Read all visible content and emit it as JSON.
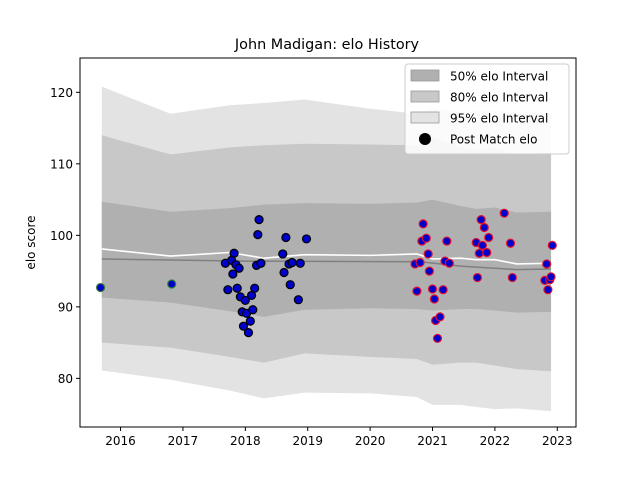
{
  "chart_data": {
    "type": "scatter",
    "title": "John Madigan: elo History",
    "xlabel": "",
    "ylabel": "elo score",
    "xlim": [
      2015.35,
      2023.3
    ],
    "ylim": [
      73.2,
      124.8
    ],
    "x_ticks": [
      2016,
      2017,
      2018,
      2019,
      2020,
      2021,
      2022,
      2023
    ],
    "y_ticks": [
      80,
      90,
      100,
      110,
      120
    ],
    "grid": false,
    "legend_position": "top-right",
    "legend": [
      {
        "label": "50% elo Interval",
        "kind": "patch",
        "color": "#b0b0b0"
      },
      {
        "label": "80% elo Interval",
        "kind": "patch",
        "color": "#c8c8c8"
      },
      {
        "label": "95% elo Interval",
        "kind": "patch",
        "color": "#e3e3e3"
      },
      {
        "label": "Post Match elo",
        "kind": "marker",
        "color": "#000000"
      }
    ],
    "colors": {
      "band_50": "#b0b0b0",
      "band_80": "#c8c8c8",
      "band_95": "#e3e3e3",
      "mean_line": "#ffffff",
      "median_line": "#808080",
      "point_fill": "#0000cc",
      "edge_first": "#2e7d32",
      "edge_mid": "#000000",
      "edge_late": "#e01030"
    },
    "bands": {
      "x": [
        2015.7,
        2016.8,
        2017.75,
        2018.3,
        2018.95,
        2020.0,
        2020.75,
        2021.0,
        2021.45,
        2021.7,
        2022.0,
        2022.35,
        2022.9
      ],
      "p95_upper": [
        120.8,
        117.0,
        118.2,
        118.5,
        119.0,
        117.7,
        117.0,
        117.8,
        117.2,
        117.4,
        117.5,
        117.0,
        117.0
      ],
      "p80_upper": [
        114.0,
        111.3,
        112.3,
        112.6,
        112.8,
        112.7,
        112.6,
        113.7,
        112.3,
        111.9,
        112.2,
        111.3,
        111.6
      ],
      "p50_upper": [
        104.7,
        103.3,
        103.8,
        104.3,
        104.5,
        104.4,
        104.6,
        105.0,
        104.1,
        103.7,
        103.9,
        103.2,
        103.3
      ],
      "p50_lower": [
        91.3,
        90.6,
        89.4,
        88.6,
        89.6,
        89.8,
        89.7,
        89.5,
        89.7,
        89.7,
        89.5,
        89.2,
        89.3
      ],
      "p80_lower": [
        85.0,
        84.3,
        83.0,
        82.2,
        83.5,
        83.0,
        82.7,
        81.9,
        82.2,
        82.2,
        81.8,
        81.3,
        81.0
      ],
      "p95_lower": [
        81.1,
        79.8,
        78.3,
        77.2,
        78.0,
        77.9,
        77.4,
        76.3,
        76.3,
        76.0,
        75.7,
        75.8,
        75.4
      ]
    },
    "mean_line": {
      "x": [
        2015.7,
        2016.8,
        2017.75,
        2018.3,
        2018.95,
        2020.0,
        2020.75,
        2021.0,
        2021.45,
        2021.7,
        2022.0,
        2022.35,
        2022.9
      ],
      "y": [
        98.1,
        97.1,
        97.6,
        96.8,
        97.3,
        97.2,
        97.4,
        96.7,
        96.8,
        96.6,
        96.6,
        96.0,
        96.1
      ]
    },
    "median_line": {
      "x": [
        2015.7,
        2018.0,
        2020.8,
        2021.45,
        2022.35,
        2022.9
      ],
      "y": [
        96.7,
        96.4,
        96.3,
        95.7,
        95.2,
        95.3
      ]
    },
    "points": {
      "x": [
        2015.68,
        2016.82,
        2017.68,
        2017.72,
        2017.78,
        2017.8,
        2017.82,
        2017.85,
        2017.87,
        2017.9,
        2017.92,
        2017.95,
        2017.97,
        2018.0,
        2018.02,
        2018.05,
        2018.08,
        2018.1,
        2018.12,
        2018.15,
        2018.18,
        2018.2,
        2018.22,
        2018.25,
        2018.6,
        2018.62,
        2018.65,
        2018.7,
        2018.72,
        2018.75,
        2018.85,
        2018.88,
        2018.98,
        2020.72,
        2020.75,
        2020.8,
        2020.83,
        2020.85,
        2020.9,
        2020.93,
        2020.95,
        2021.0,
        2021.03,
        2021.05,
        2021.08,
        2021.12,
        2021.17,
        2021.2,
        2021.23,
        2021.27,
        2021.7,
        2021.72,
        2021.75,
        2021.78,
        2021.8,
        2021.83,
        2021.87,
        2021.9,
        2022.15,
        2022.25,
        2022.28,
        2022.8,
        2022.83,
        2022.85,
        2022.88,
        2022.9,
        2022.92
      ],
      "y": [
        92.7,
        93.2,
        96.1,
        92.4,
        96.5,
        94.6,
        97.5,
        95.9,
        92.6,
        95.4,
        91.4,
        89.3,
        87.3,
        90.9,
        89.1,
        86.4,
        88.0,
        91.6,
        89.6,
        92.6,
        95.8,
        100.1,
        102.2,
        96.1,
        97.4,
        94.8,
        99.7,
        96.0,
        93.1,
        96.2,
        91.0,
        96.1,
        99.5,
        96.0,
        92.2,
        96.2,
        99.2,
        101.6,
        99.6,
        97.4,
        95.0,
        92.5,
        91.1,
        88.1,
        85.6,
        88.6,
        92.4,
        96.4,
        99.2,
        96.1,
        99.0,
        94.1,
        97.5,
        102.2,
        98.6,
        101.1,
        97.6,
        99.7,
        103.1,
        98.9,
        94.1,
        93.7,
        96.0,
        92.4,
        93.8,
        94.2,
        98.6
      ]
    }
  }
}
